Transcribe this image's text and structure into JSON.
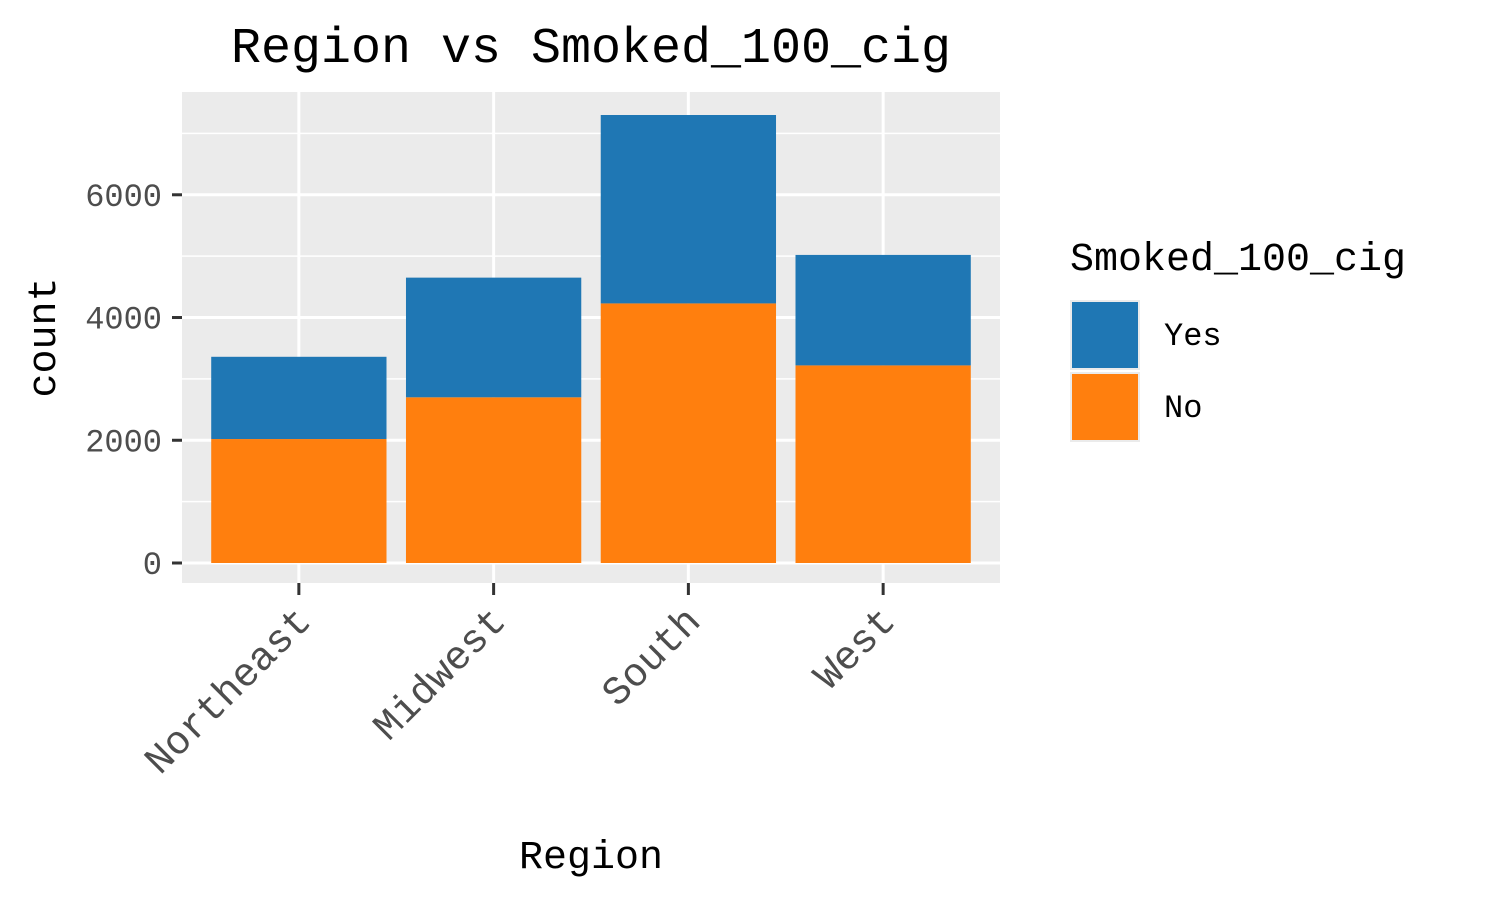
{
  "chart_data": {
    "type": "bar",
    "stacked": true,
    "title": "Region vs Smoked_100_cig",
    "xlabel": "Region",
    "ylabel": "count",
    "categories": [
      "Northeast",
      "Midwest",
      "South",
      "West"
    ],
    "series": [
      {
        "name": "No",
        "values": [
          2020,
          2700,
          4230,
          3220
        ]
      },
      {
        "name": "Yes",
        "values": [
          1340,
          1950,
          3070,
          1800
        ]
      }
    ],
    "ylim": [
      0,
      7300
    ],
    "yticks": [
      0,
      2000,
      4000,
      6000
    ],
    "grid": true,
    "legend": {
      "title": "Smoked_100_cig",
      "position": "right",
      "order": [
        "Yes",
        "No"
      ]
    },
    "colors": {
      "Yes": "#1f77b4",
      "No": "#ff7f0e",
      "panel": "#ebebeb",
      "grid": "#ffffff"
    }
  }
}
